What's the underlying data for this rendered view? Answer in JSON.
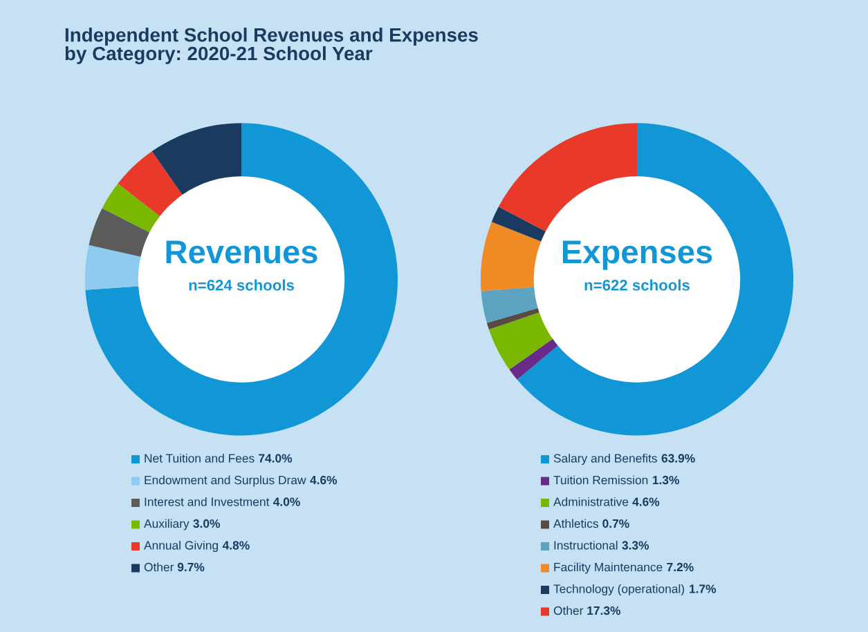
{
  "chart_data": [
    {
      "type": "donut",
      "title": "Revenues",
      "subtitle": "n=624 schools",
      "annotations": [
        "Independent School Revenues and Expenses\nby Category: 2020-21 School Year"
      ],
      "legend": "bottom",
      "categories": [
        "Net Tuition and Fees",
        "Endowment and Surplus Draw",
        "Interest and Investment",
        "Auxiliary",
        "Annual Giving",
        "Other"
      ],
      "values": [
        74.0,
        4.6,
        4.0,
        3.0,
        4.8,
        9.7
      ],
      "value_labels": [
        "74.0%",
        "4.6%",
        "4.0%",
        "3.0%",
        "4.8%",
        "9.7%"
      ],
      "colors": [
        "#1197d6",
        "#8ecbef",
        "#5b5b5b",
        "#7ab800",
        "#e8392a",
        "#1b3a60"
      ]
    },
    {
      "type": "donut",
      "title": "Expenses",
      "subtitle": "n=622 schools",
      "legend": "bottom",
      "categories": [
        "Salary and Benefits",
        "Tuition Remission",
        "Administrative",
        "Athletics",
        "Instructional",
        "Facility Maintenance",
        "Technology (operational)",
        "Other"
      ],
      "values": [
        63.9,
        1.3,
        4.6,
        0.7,
        3.3,
        7.2,
        1.7,
        17.3
      ],
      "value_labels": [
        "63.9%",
        "1.3%",
        "4.6%",
        "0.7%",
        "3.3%",
        "7.2%",
        "1.7%",
        "17.3%"
      ],
      "colors": [
        "#1197d6",
        "#6a2a8a",
        "#7ab800",
        "#5a4a44",
        "#5ba3c0",
        "#f08a24",
        "#1b3a60",
        "#e8392a"
      ]
    }
  ]
}
